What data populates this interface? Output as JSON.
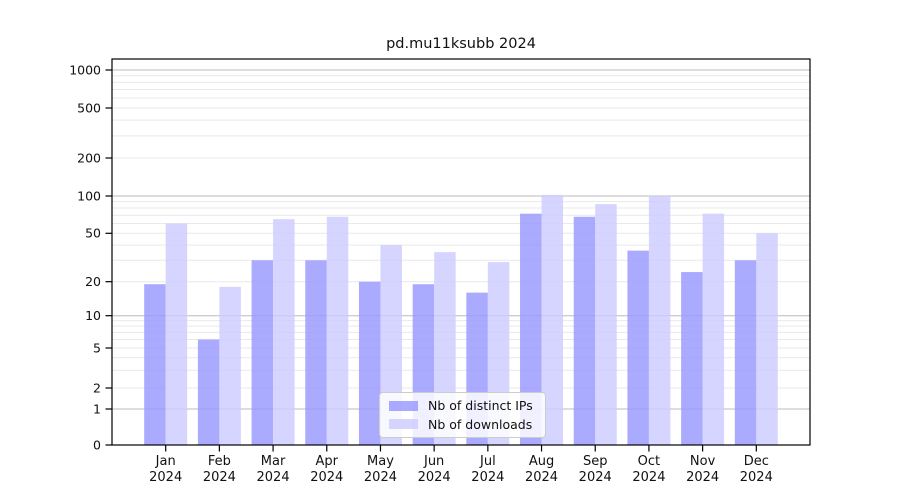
{
  "title": "pd.mu11ksubb 2024",
  "colors": {
    "distinct_ips_fill": "rgba(153,153,255,0.83)",
    "downloads_fill": "rgba(204,204,255,0.83)",
    "distinct_ips_hex": "#9999ff",
    "downloads_hex": "#ccccff",
    "major_grid": "#bbbbbb",
    "minor_grid": "#e9e9e9",
    "axis": "#000000"
  },
  "legend": {
    "items": [
      {
        "label": "Nb of distinct IPs",
        "series": "distinct-ips"
      },
      {
        "label": "Nb of downloads",
        "series": "downloads"
      }
    ]
  },
  "chart_data": {
    "type": "bar",
    "title": "pd.mu11ksubb 2024",
    "categories": [
      "Jan",
      "Feb",
      "Mar",
      "Apr",
      "May",
      "Jun",
      "Jul",
      "Aug",
      "Sep",
      "Oct",
      "Nov",
      "Dec"
    ],
    "category_year": "2024",
    "series": [
      {
        "name": "Nb of distinct IPs",
        "key": "distinct-ips",
        "values": [
          19,
          6,
          30,
          30,
          20,
          19,
          16,
          72,
          68,
          36,
          24,
          30
        ]
      },
      {
        "name": "Nb of downloads",
        "key": "downloads",
        "values": [
          60,
          18,
          65,
          68,
          40,
          35,
          29,
          102,
          86,
          100,
          72,
          50
        ]
      }
    ],
    "yscale": "symlog",
    "y_ticks": [
      0,
      1,
      2,
      5,
      10,
      20,
      50,
      100,
      200,
      500,
      1000
    ],
    "ylim": [
      0,
      1200
    ],
    "xlabel": "",
    "ylabel": "",
    "grid": true,
    "legend_position": "lower center"
  }
}
